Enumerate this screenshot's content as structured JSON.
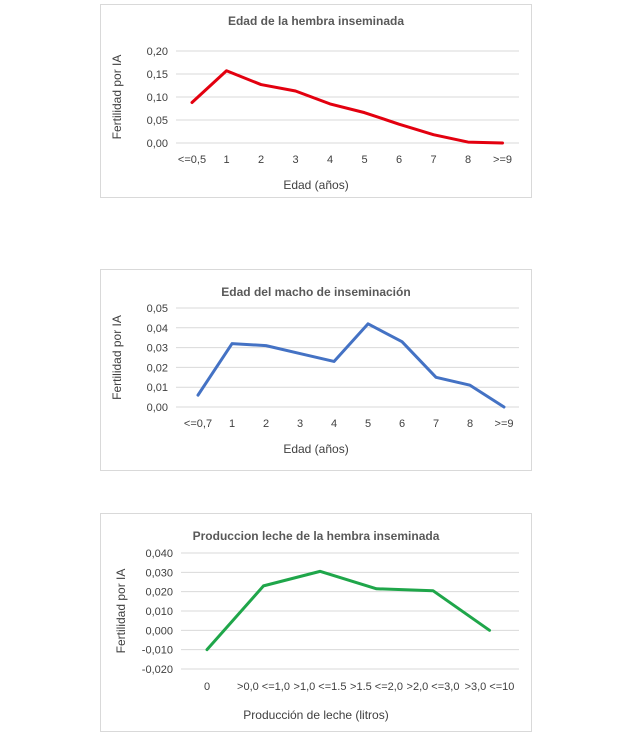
{
  "chart_data": [
    {
      "type": "line",
      "title": "Edad de la hembra inseminada",
      "xlabel": "Edad (años)",
      "ylabel": "Fertilidad por IA",
      "categories": [
        "<=0,5",
        "1",
        "2",
        "3",
        "4",
        "5",
        "6",
        "7",
        "8",
        ">=9"
      ],
      "series": [
        {
          "values": [
            0.088,
            0.157,
            0.127,
            0.113,
            0.085,
            0.066,
            0.041,
            0.018,
            0.002,
            0.0
          ]
        }
      ],
      "ylim": [
        0,
        0.2
      ],
      "yticks": [
        "0,00",
        "0,05",
        "0,10",
        "0,15",
        "0,20"
      ],
      "ytick_values": [
        0,
        0.05,
        0.1,
        0.15,
        0.2
      ],
      "grid": true,
      "legend": "none",
      "colors": [
        "#e3000f"
      ]
    },
    {
      "type": "line",
      "title": "Edad del macho de inseminación",
      "xlabel": "Edad (años)",
      "ylabel": "Fertilidad por IA",
      "categories": [
        "<=0,7",
        "1",
        "2",
        "3",
        "4",
        "5",
        "6",
        "7",
        "8",
        ">=9"
      ],
      "series": [
        {
          "values": [
            0.006,
            0.032,
            0.031,
            0.027,
            0.023,
            0.042,
            0.033,
            0.015,
            0.011,
            0.0
          ]
        }
      ],
      "ylim": [
        0,
        0.05
      ],
      "yticks": [
        "0,00",
        "0,01",
        "0,02",
        "0,03",
        "0,04",
        "0,05"
      ],
      "ytick_values": [
        0,
        0.01,
        0.02,
        0.03,
        0.04,
        0.05
      ],
      "grid": true,
      "legend": "none",
      "colors": [
        "#4472c4"
      ]
    },
    {
      "type": "line",
      "title": "Produccion leche de la hembra inseminada",
      "xlabel": "Producción de leche  (litros)",
      "ylabel": "Fertilidad por IA",
      "categories": [
        "0",
        ">0,0 <=1,0",
        ">1,0 <=1.5",
        ">1.5 <=2,0",
        ">2,0 <=3,0",
        ">3,0 <=10"
      ],
      "series": [
        {
          "values": [
            -0.01,
            0.023,
            0.0305,
            0.0215,
            0.0205,
            0.0
          ]
        }
      ],
      "ylim": [
        -0.02,
        0.04
      ],
      "yticks": [
        "-0,020",
        "-0,010",
        "0,000",
        "0,010",
        "0,020",
        "0,030",
        "0,040"
      ],
      "ytick_values": [
        -0.02,
        -0.01,
        0,
        0.01,
        0.02,
        0.03,
        0.04
      ],
      "grid": true,
      "legend": "none",
      "colors": [
        "#1fa64a"
      ]
    }
  ]
}
